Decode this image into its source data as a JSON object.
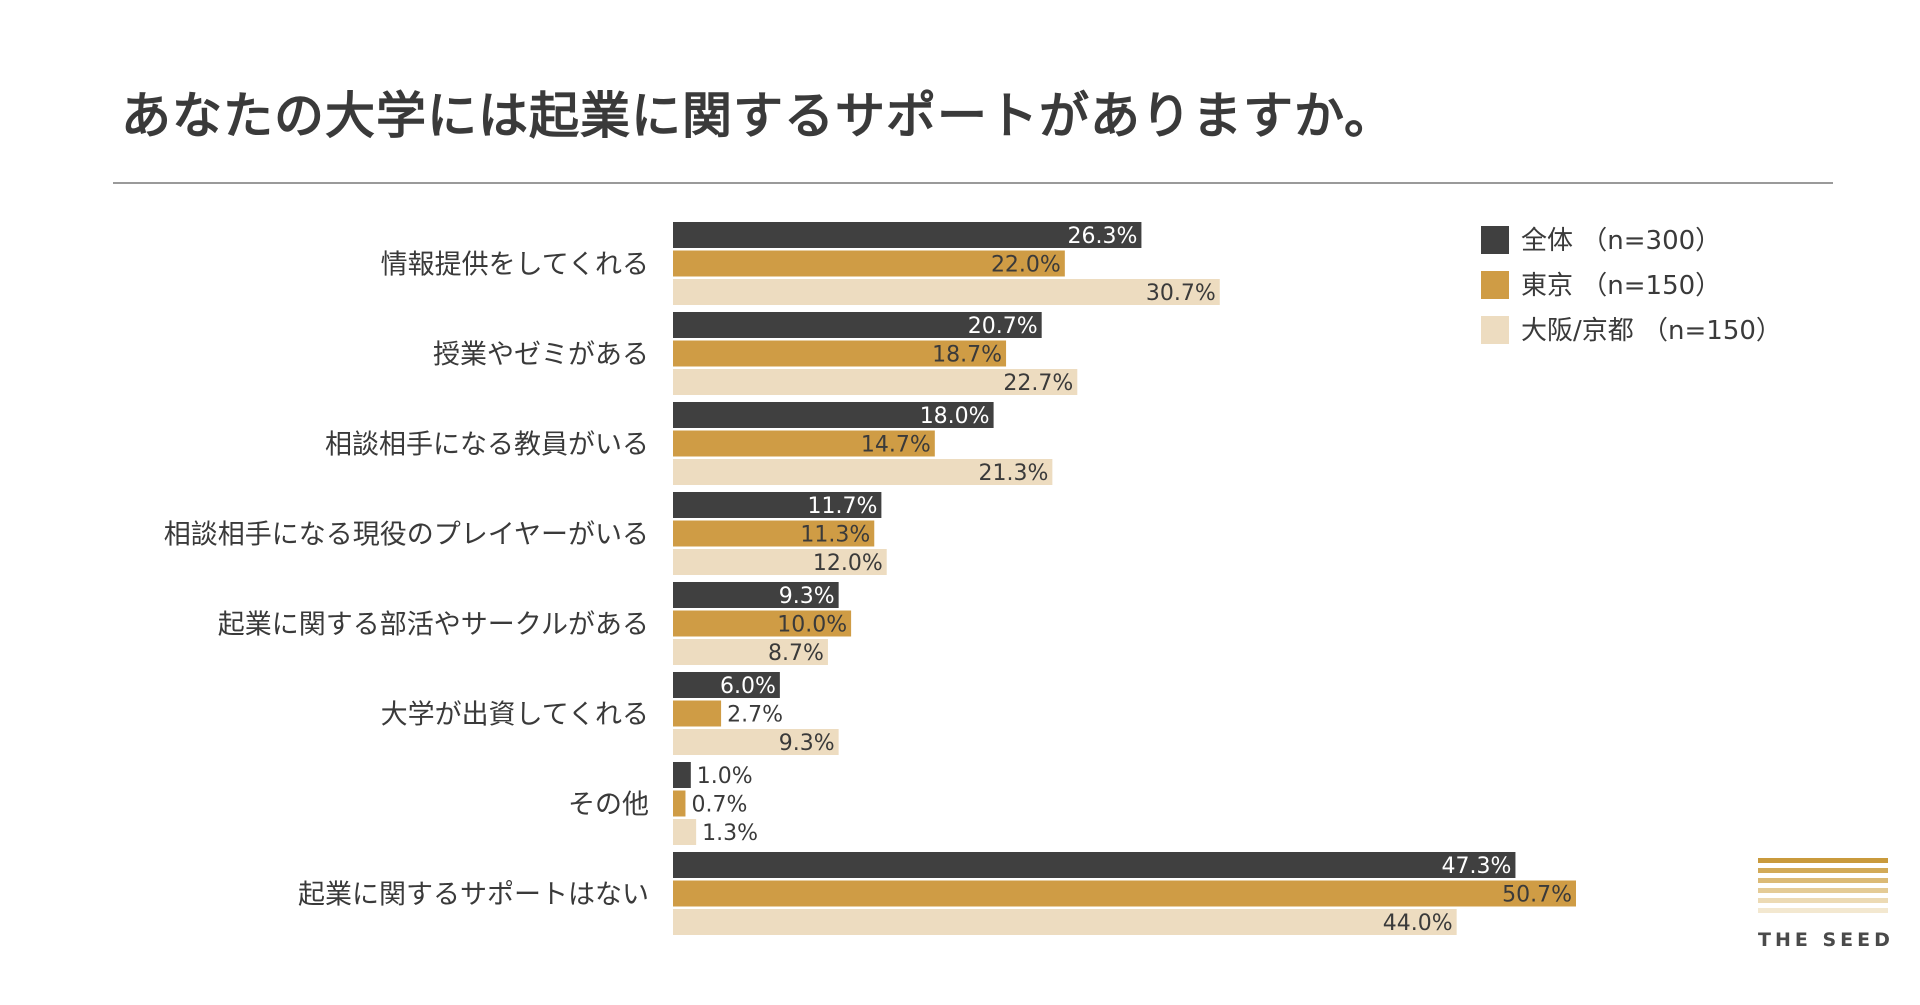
{
  "chart_data": {
    "type": "bar",
    "orientation": "horizontal",
    "title": "あなたの大学には起業に関するサポートがありますか。",
    "categories": [
      "情報提供をしてくれる",
      "授業やゼミがある",
      "相談相手になる教員がいる",
      "相談相手になる現役のプレイヤーがいる",
      "起業に関する部活やサークルがある",
      "大学が出資してくれる",
      "その他",
      "起業に関するサポートはない"
    ],
    "series": [
      {
        "name": "全体 （n=300）",
        "color": "#404040",
        "label_color": "#ffffff",
        "values": [
          26.3,
          20.7,
          18.0,
          11.7,
          9.3,
          6.0,
          1.0,
          47.3
        ]
      },
      {
        "name": "東京 （n=150）",
        "color": "#cf9c45",
        "label_color": "#3a3a3a",
        "values": [
          22.0,
          18.7,
          14.7,
          11.3,
          10.0,
          2.7,
          0.7,
          50.7
        ]
      },
      {
        "name": "大阪/京都 （n=150）",
        "color": "#eddcc0",
        "label_color": "#3a3a3a",
        "values": [
          30.7,
          22.7,
          21.3,
          12.0,
          8.7,
          9.3,
          1.3,
          44.0
        ]
      }
    ],
    "value_suffix": "%",
    "xlim": [
      0,
      50.7
    ],
    "legend_position": "top-right",
    "grid": false
  },
  "logo": {
    "text": "THE SEED",
    "stripe_colors": [
      "#c99a3c",
      "#d2aa58",
      "#dbba76",
      "#e4cb96",
      "#ecdab4",
      "#f3e8d0"
    ]
  }
}
